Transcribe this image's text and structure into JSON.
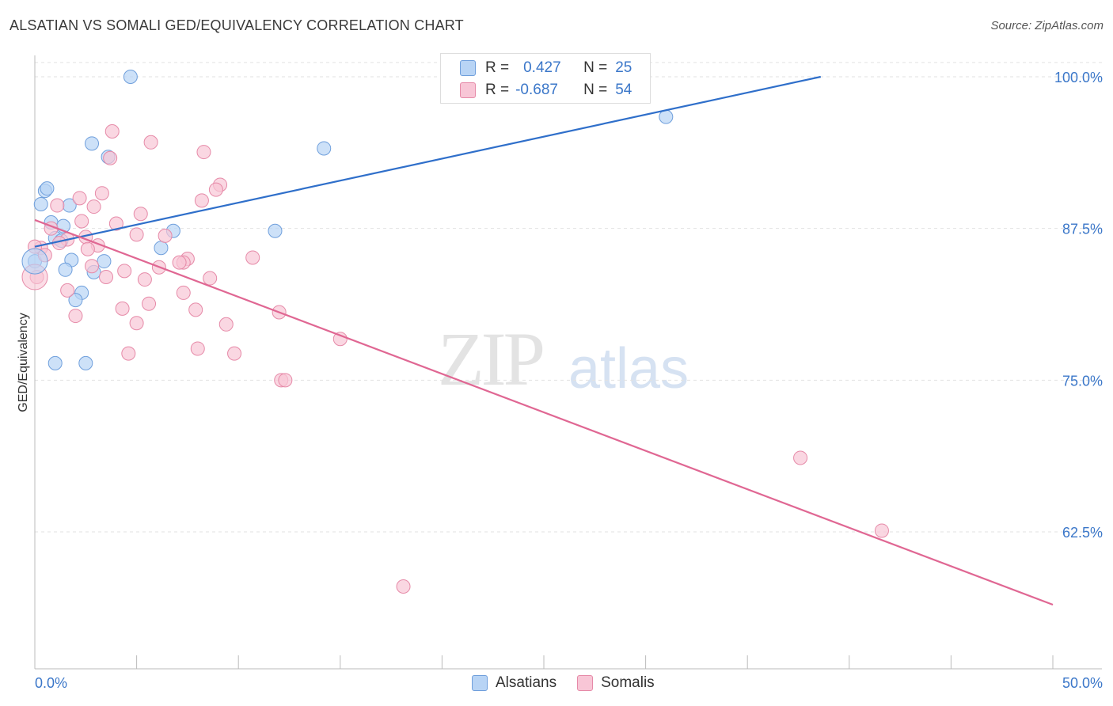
{
  "header": {
    "title": "ALSATIAN VS SOMALI GED/EQUIVALENCY CORRELATION CHART",
    "source": "Source: ZipAtlas.com"
  },
  "watermark": {
    "zip": "ZIP",
    "atlas": "atlas"
  },
  "colors": {
    "alsatians_fill": "#b8d4f5",
    "alsatians_stroke": "#6f9fdc",
    "alsatians_line": "#2f6fca",
    "somalis_fill": "#f8c6d6",
    "somalis_stroke": "#e68aa8",
    "somalis_line": "#e06793",
    "axis_text": "#3b77c9",
    "grid": "#e2e2e2"
  },
  "legend": {
    "rows": [
      {
        "r_label": "R =",
        "r_value": "0.427",
        "n_label": "N =",
        "n_value": "25"
      },
      {
        "r_label": "R =",
        "r_value": "-0.687",
        "n_label": "N =",
        "n_value": "54"
      }
    ],
    "bottom": [
      "Alsatians",
      "Somalis"
    ]
  },
  "chart_data": {
    "type": "scatter",
    "xlabel": "",
    "ylabel": "GED/Equivalency",
    "xlim": [
      0,
      50
    ],
    "ylim": [
      50,
      101.5
    ],
    "x_tick_labels": [
      "0.0%",
      "50.0%"
    ],
    "y_ticks": [
      62.5,
      75.0,
      87.5,
      100.0
    ],
    "y_tick_labels": [
      "62.5%",
      "75.0%",
      "87.5%",
      "100.0%"
    ],
    "grid": true,
    "series": [
      {
        "name": "Alsatians",
        "r": 0.427,
        "n": 25,
        "trend": {
          "x": [
            0,
            38.6
          ],
          "y": [
            86.0,
            100.0
          ]
        },
        "points": [
          [
            4.7,
            100.0
          ],
          [
            31.0,
            96.7
          ],
          [
            2.8,
            94.5
          ],
          [
            14.2,
            94.1
          ],
          [
            3.6,
            93.4
          ],
          [
            0.5,
            90.6
          ],
          [
            0.6,
            90.8
          ],
          [
            0.3,
            89.5
          ],
          [
            1.7,
            89.4
          ],
          [
            0.8,
            88.0
          ],
          [
            1.4,
            87.7
          ],
          [
            6.8,
            87.3
          ],
          [
            11.8,
            87.3
          ],
          [
            1.0,
            86.7
          ],
          [
            1.3,
            86.5
          ],
          [
            6.2,
            85.9
          ],
          [
            0.0,
            84.8
          ],
          [
            1.8,
            84.9
          ],
          [
            3.4,
            84.8
          ],
          [
            1.5,
            84.1
          ],
          [
            2.9,
            83.9
          ],
          [
            2.3,
            82.2
          ],
          [
            2.0,
            81.6
          ],
          [
            1.0,
            76.4
          ],
          [
            2.5,
            76.4
          ]
        ]
      },
      {
        "name": "Somalis",
        "r": -0.687,
        "n": 54,
        "trend": {
          "x": [
            0,
            50
          ],
          "y": [
            88.2,
            56.5
          ]
        },
        "points": [
          [
            3.8,
            95.5
          ],
          [
            5.7,
            94.6
          ],
          [
            8.3,
            93.8
          ],
          [
            3.7,
            93.3
          ],
          [
            9.1,
            91.1
          ],
          [
            8.9,
            90.7
          ],
          [
            3.3,
            90.4
          ],
          [
            2.2,
            90.0
          ],
          [
            8.2,
            89.8
          ],
          [
            1.1,
            89.4
          ],
          [
            2.9,
            89.3
          ],
          [
            5.2,
            88.7
          ],
          [
            2.3,
            88.1
          ],
          [
            4.0,
            87.9
          ],
          [
            0.8,
            87.5
          ],
          [
            5.0,
            87.0
          ],
          [
            6.4,
            86.9
          ],
          [
            2.5,
            86.8
          ],
          [
            1.6,
            86.6
          ],
          [
            1.2,
            86.3
          ],
          [
            3.1,
            86.1
          ],
          [
            2.6,
            85.8
          ],
          [
            0.3,
            85.9
          ],
          [
            0.5,
            85.3
          ],
          [
            10.7,
            85.1
          ],
          [
            7.5,
            85.0
          ],
          [
            7.3,
            84.7
          ],
          [
            7.1,
            84.7
          ],
          [
            6.1,
            84.3
          ],
          [
            2.8,
            84.4
          ],
          [
            4.4,
            84.0
          ],
          [
            3.5,
            83.5
          ],
          [
            5.4,
            83.3
          ],
          [
            8.6,
            83.4
          ],
          [
            0.1,
            83.5
          ],
          [
            1.6,
            82.4
          ],
          [
            7.3,
            82.2
          ],
          [
            5.6,
            81.3
          ],
          [
            4.3,
            80.9
          ],
          [
            7.9,
            80.8
          ],
          [
            12.0,
            80.6
          ],
          [
            2.0,
            80.3
          ],
          [
            5.0,
            79.7
          ],
          [
            9.4,
            79.6
          ],
          [
            15.0,
            78.4
          ],
          [
            8.0,
            77.6
          ],
          [
            4.6,
            77.2
          ],
          [
            9.8,
            77.2
          ],
          [
            12.1,
            75.0
          ],
          [
            12.3,
            75.0
          ],
          [
            37.6,
            68.6
          ],
          [
            41.6,
            62.6
          ],
          [
            18.1,
            58.0
          ],
          [
            0.0,
            86.0
          ]
        ]
      }
    ]
  }
}
